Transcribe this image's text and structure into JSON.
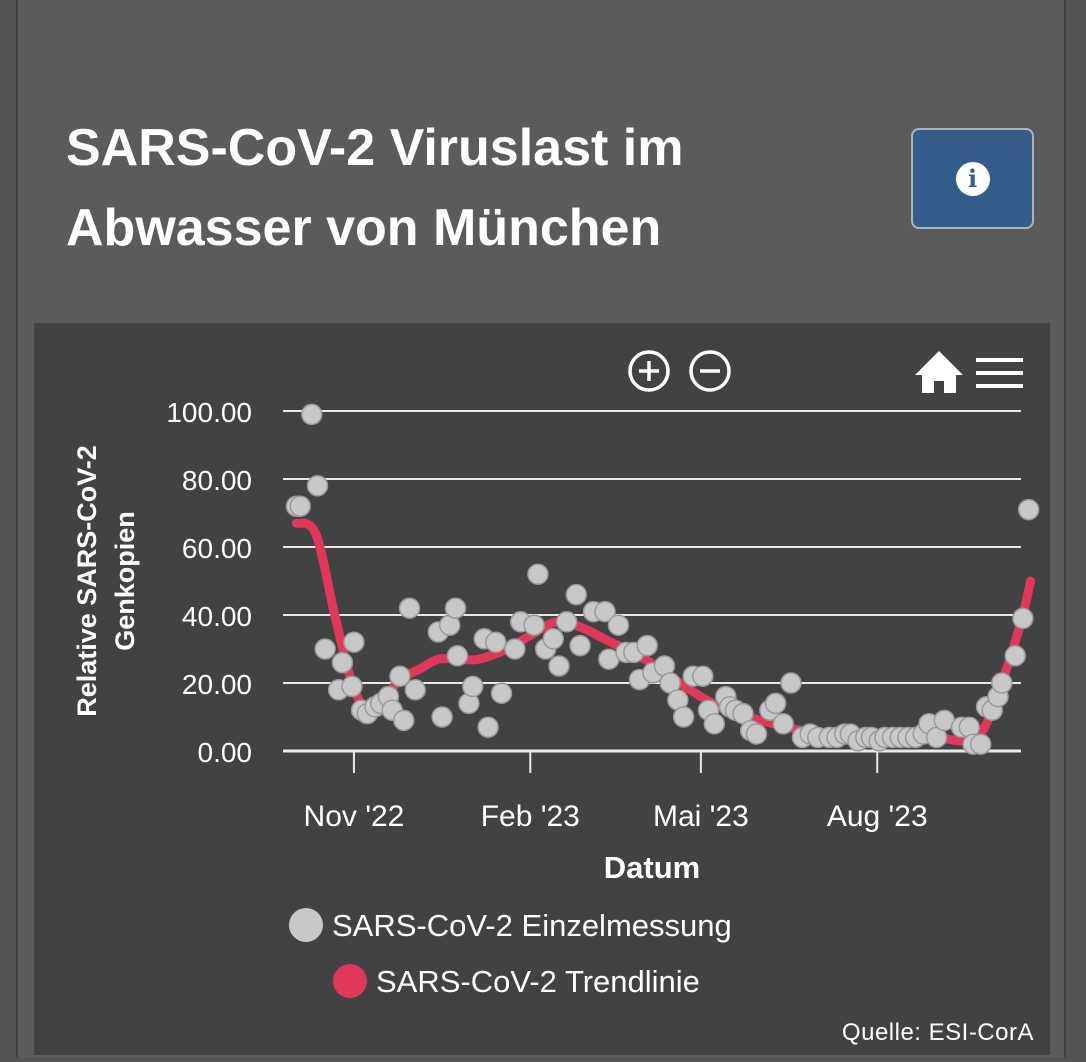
{
  "header": {
    "title": "SARS-CoV-2 Viruslast im Abwasser von München",
    "info_button_icon": "info-icon"
  },
  "toolbar": {
    "zoom_in_icon": "zoom-in-icon",
    "zoom_out_icon": "zoom-out-icon",
    "home_icon": "home-icon",
    "menu_icon": "menu-icon"
  },
  "colors": {
    "point": "#c8c8c8",
    "trend": "#e0385a",
    "info_button": "#355d8a"
  },
  "chart_data": {
    "type": "scatter",
    "xlabel": "Datum",
    "ylabel": "Relative SARS-CoV-2 Genkopien",
    "ylim": [
      0,
      100
    ],
    "yticks": [
      "0.00",
      "20.00",
      "40.00",
      "60.00",
      "80.00",
      "100.00"
    ],
    "xlim": [
      "2022-09-25",
      "2023-10-15"
    ],
    "xticks": [
      {
        "label": "Nov '22",
        "date": "2022-11-01"
      },
      {
        "label": "Feb '23",
        "date": "2023-02-01"
      },
      {
        "label": "Mai '23",
        "date": "2023-05-01"
      },
      {
        "label": "Aug '23",
        "date": "2023-08-01"
      }
    ],
    "grid": true,
    "legend_position": "bottom",
    "source": "Quelle: ESI-CorA",
    "series": [
      {
        "name": "SARS-CoV-2 Einzelmessung",
        "type": "scatter",
        "points": [
          [
            "2022-10-02",
            72
          ],
          [
            "2022-10-04",
            72
          ],
          [
            "2022-10-10",
            99
          ],
          [
            "2022-10-13",
            78
          ],
          [
            "2022-10-17",
            30
          ],
          [
            "2022-10-24",
            18
          ],
          [
            "2022-10-26",
            26
          ],
          [
            "2022-10-31",
            19
          ],
          [
            "2022-11-01",
            32
          ],
          [
            "2022-11-05",
            12
          ],
          [
            "2022-11-08",
            11
          ],
          [
            "2022-11-12",
            13
          ],
          [
            "2022-11-15",
            14
          ],
          [
            "2022-11-19",
            16
          ],
          [
            "2022-11-21",
            12
          ],
          [
            "2022-11-25",
            22
          ],
          [
            "2022-11-27",
            9
          ],
          [
            "2022-11-30",
            42
          ],
          [
            "2022-12-03",
            18
          ],
          [
            "2022-12-15",
            35
          ],
          [
            "2022-12-17",
            10
          ],
          [
            "2022-12-21",
            37
          ],
          [
            "2022-12-24",
            42
          ],
          [
            "2022-12-25",
            28
          ],
          [
            "2022-12-31",
            14
          ],
          [
            "2023-01-02",
            19
          ],
          [
            "2023-01-08",
            33
          ],
          [
            "2023-01-10",
            7
          ],
          [
            "2023-01-14",
            32
          ],
          [
            "2023-01-17",
            17
          ],
          [
            "2023-01-24",
            30
          ],
          [
            "2023-01-27",
            38
          ],
          [
            "2023-02-03",
            37
          ],
          [
            "2023-02-05",
            52
          ],
          [
            "2023-02-09",
            30
          ],
          [
            "2023-02-13",
            33
          ],
          [
            "2023-02-16",
            25
          ],
          [
            "2023-02-20",
            38
          ],
          [
            "2023-02-25",
            46
          ],
          [
            "2023-02-27",
            31
          ],
          [
            "2023-03-06",
            41
          ],
          [
            "2023-03-12",
            41
          ],
          [
            "2023-03-14",
            27
          ],
          [
            "2023-03-19",
            37
          ],
          [
            "2023-03-23",
            29
          ],
          [
            "2023-03-27",
            29
          ],
          [
            "2023-03-30",
            21
          ],
          [
            "2023-04-03",
            31
          ],
          [
            "2023-04-06",
            23
          ],
          [
            "2023-04-12",
            25
          ],
          [
            "2023-04-15",
            20
          ],
          [
            "2023-04-19",
            15
          ],
          [
            "2023-04-22",
            10
          ],
          [
            "2023-04-27",
            22
          ],
          [
            "2023-05-02",
            22
          ],
          [
            "2023-05-05",
            12
          ],
          [
            "2023-05-08",
            8
          ],
          [
            "2023-05-14",
            16
          ],
          [
            "2023-05-16",
            13
          ],
          [
            "2023-05-19",
            12
          ],
          [
            "2023-05-23",
            11
          ],
          [
            "2023-05-27",
            6
          ],
          [
            "2023-05-30",
            5
          ],
          [
            "2023-06-06",
            12
          ],
          [
            "2023-06-09",
            14
          ],
          [
            "2023-06-13",
            8
          ],
          [
            "2023-06-17",
            20
          ],
          [
            "2023-06-23",
            4
          ],
          [
            "2023-06-27",
            5
          ],
          [
            "2023-07-01",
            4
          ],
          [
            "2023-07-07",
            4
          ],
          [
            "2023-07-11",
            4
          ],
          [
            "2023-07-15",
            5
          ],
          [
            "2023-07-18",
            5
          ],
          [
            "2023-07-22",
            3
          ],
          [
            "2023-07-26",
            4
          ],
          [
            "2023-07-29",
            4
          ],
          [
            "2023-08-02",
            3
          ],
          [
            "2023-08-05",
            4
          ],
          [
            "2023-08-09",
            4
          ],
          [
            "2023-08-13",
            4
          ],
          [
            "2023-08-17",
            4
          ],
          [
            "2023-08-21",
            4
          ],
          [
            "2023-08-25",
            5
          ],
          [
            "2023-08-28",
            8
          ],
          [
            "2023-09-01",
            4
          ],
          [
            "2023-09-05",
            9
          ],
          [
            "2023-09-14",
            7
          ],
          [
            "2023-09-18",
            7
          ],
          [
            "2023-09-20",
            2
          ],
          [
            "2023-09-24",
            2
          ],
          [
            "2023-09-27",
            13
          ],
          [
            "2023-09-30",
            12
          ],
          [
            "2023-10-03",
            16
          ],
          [
            "2023-10-05",
            20
          ],
          [
            "2023-10-12",
            28
          ],
          [
            "2023-10-16",
            39
          ],
          [
            "2023-10-19",
            71
          ]
        ]
      },
      {
        "name": "SARS-CoV-2 Trendlinie",
        "type": "line",
        "points": [
          [
            "2022-10-02",
            67
          ],
          [
            "2022-10-12",
            64
          ],
          [
            "2022-10-22",
            40
          ],
          [
            "2022-10-31",
            20
          ],
          [
            "2022-11-08",
            12
          ],
          [
            "2022-11-16",
            15
          ],
          [
            "2022-11-25",
            21
          ],
          [
            "2022-12-05",
            24
          ],
          [
            "2022-12-15",
            27
          ],
          [
            "2022-12-25",
            27
          ],
          [
            "2023-01-05",
            27
          ],
          [
            "2023-01-20",
            30
          ],
          [
            "2023-02-01",
            34
          ],
          [
            "2023-02-15",
            38
          ],
          [
            "2023-03-01",
            36
          ],
          [
            "2023-03-15",
            32
          ],
          [
            "2023-03-30",
            28
          ],
          [
            "2023-04-15",
            22
          ],
          [
            "2023-05-01",
            16
          ],
          [
            "2023-05-15",
            12
          ],
          [
            "2023-06-01",
            9
          ],
          [
            "2023-06-15",
            7
          ],
          [
            "2023-07-01",
            5
          ],
          [
            "2023-07-15",
            4
          ],
          [
            "2023-08-01",
            4
          ],
          [
            "2023-08-15",
            4
          ],
          [
            "2023-09-01",
            4
          ],
          [
            "2023-09-15",
            3
          ],
          [
            "2023-09-25",
            6
          ],
          [
            "2023-10-05",
            20
          ],
          [
            "2023-10-15",
            38
          ],
          [
            "2023-10-20",
            50
          ]
        ]
      }
    ]
  }
}
